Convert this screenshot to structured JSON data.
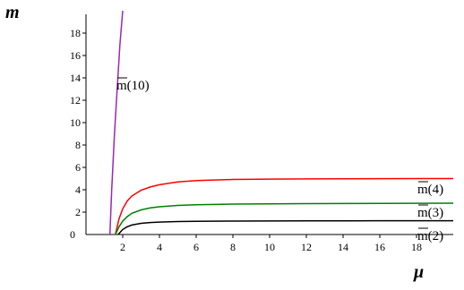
{
  "chart_data": {
    "type": "line",
    "xlabel": "μ",
    "ylabel": "m",
    "xlim": [
      0,
      20
    ],
    "ylim": [
      0,
      20
    ],
    "x_ticks": [
      2,
      4,
      6,
      8,
      10,
      12,
      14,
      16,
      18
    ],
    "y_ticks": [
      2,
      4,
      6,
      8,
      10,
      12,
      14,
      16,
      18
    ],
    "origin_label": "0",
    "grid": false,
    "series": [
      {
        "name": "m̄(10)",
        "color": "#9b26b6",
        "x": [
          1.3,
          1.4,
          1.55,
          1.7,
          1.85,
          2.0
        ],
        "y": [
          0.0,
          4.0,
          9.0,
          13.0,
          17.0,
          20.0
        ]
      },
      {
        "name": "m̄(4)",
        "color": "#ff0000",
        "x": [
          1.6,
          1.8,
          2.0,
          2.25,
          2.5,
          3.0,
          3.5,
          4.0,
          5.0,
          6.0,
          8.0,
          10.0,
          12.0,
          14.0,
          16.0,
          18.0,
          20.0
        ],
        "y": [
          0.0,
          1.4,
          2.3,
          3.0,
          3.45,
          3.95,
          4.25,
          4.45,
          4.7,
          4.82,
          4.92,
          4.95,
          4.97,
          4.98,
          4.99,
          5.0,
          5.0
        ]
      },
      {
        "name": "m̄(3)",
        "color": "#008000",
        "x": [
          1.6,
          1.8,
          2.0,
          2.25,
          2.5,
          3.0,
          3.5,
          4.0,
          5.0,
          6.0,
          8.0,
          10.0,
          12.0,
          14.0,
          16.0,
          18.0,
          20.0
        ],
        "y": [
          0.0,
          0.7,
          1.2,
          1.6,
          1.9,
          2.2,
          2.38,
          2.48,
          2.6,
          2.66,
          2.72,
          2.74,
          2.76,
          2.77,
          2.78,
          2.79,
          2.8
        ]
      },
      {
        "name": "m̄(2)",
        "color": "#000000",
        "x": [
          1.75,
          2.0,
          2.25,
          2.5,
          3.0,
          3.5,
          4.0,
          5.0,
          6.0,
          8.0,
          10.0,
          12.0,
          14.0,
          16.0,
          18.0,
          20.0
        ],
        "y": [
          0.0,
          0.45,
          0.7,
          0.85,
          1.0,
          1.07,
          1.11,
          1.16,
          1.18,
          1.2,
          1.21,
          1.22,
          1.22,
          1.23,
          1.23,
          1.23
        ]
      }
    ]
  }
}
